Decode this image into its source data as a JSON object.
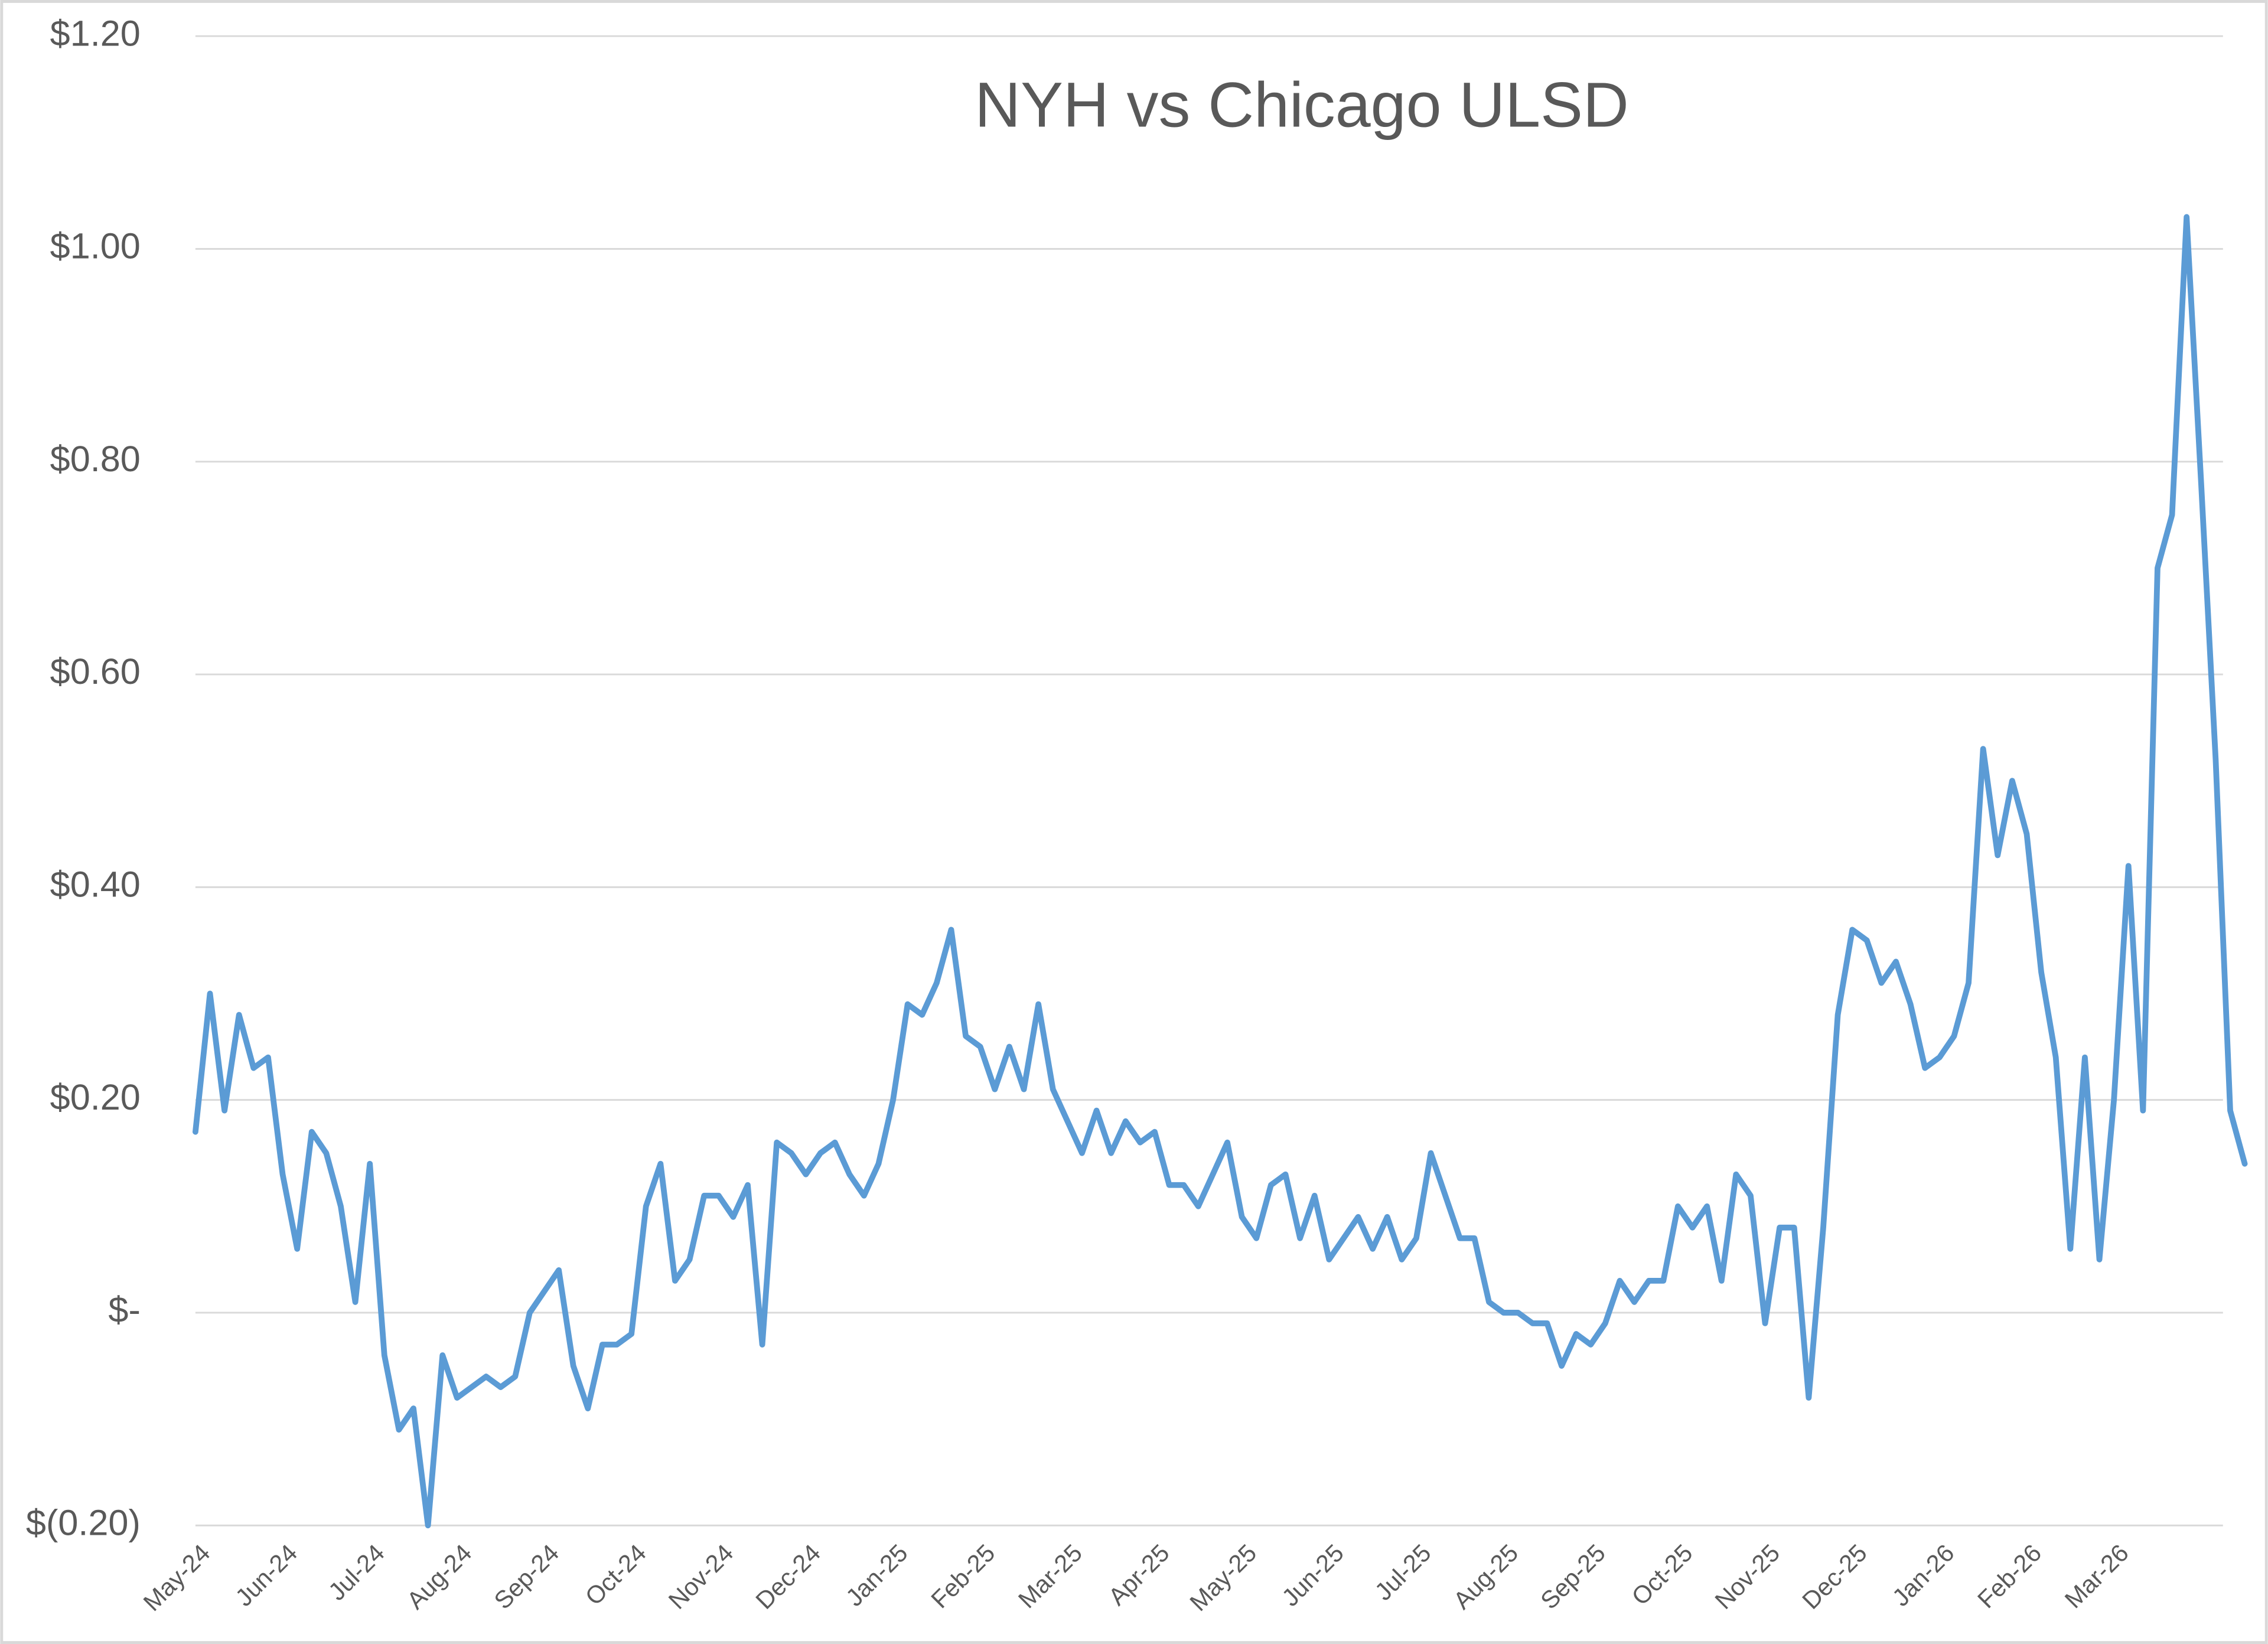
{
  "chart_data": {
    "type": "line",
    "title": "NYH vs Chicago ULSD",
    "color": "#5b9bd5",
    "grid": true,
    "ylim": [
      -0.2,
      1.2
    ],
    "yticks": [
      {
        "value": -0.2,
        "label": "$(0.20)"
      },
      {
        "value": 0,
        "label": "$-"
      },
      {
        "value": 0.2,
        "label": "$0.20"
      },
      {
        "value": 0.4,
        "label": "$0.40"
      },
      {
        "value": 0.6,
        "label": "$0.60"
      },
      {
        "value": 0.8,
        "label": "$0.80"
      },
      {
        "value": 1.0,
        "label": "$1.00"
      },
      {
        "value": 1.2,
        "label": "$1.20"
      }
    ],
    "categories": [
      "May-24",
      null,
      null,
      null,
      null,
      null,
      "Jun-24",
      null,
      null,
      null,
      null,
      null,
      "Jul-24",
      null,
      null,
      null,
      null,
      null,
      "Aug-24",
      null,
      null,
      null,
      null,
      null,
      "Sep-24",
      null,
      null,
      null,
      null,
      null,
      "Oct-24",
      null,
      null,
      null,
      null,
      null,
      "Nov-24",
      null,
      null,
      null,
      null,
      null,
      "Dec-24",
      null,
      null,
      null,
      null,
      null,
      "Jan-25",
      null,
      null,
      null,
      null,
      null,
      "Feb-25",
      null,
      null,
      null,
      null,
      null,
      "Mar-25",
      null,
      null,
      null,
      null,
      null,
      "Apr-25",
      null,
      null,
      null,
      null,
      null,
      "May-25",
      null,
      null,
      null,
      null,
      null,
      "Jun-25",
      null,
      null,
      null,
      null,
      null,
      "Jul-25",
      null,
      null,
      null,
      null,
      null,
      "Aug-25",
      null,
      null,
      null,
      null,
      null,
      "Sep-25",
      null,
      null,
      null,
      null,
      null,
      "Oct-25",
      null,
      null,
      null,
      null,
      null,
      "Nov-25",
      null,
      null,
      null,
      null,
      null,
      "Dec-25",
      null,
      null,
      null,
      null,
      null,
      "Jan-26",
      null,
      null,
      null,
      null,
      null,
      "Feb-26",
      null,
      null,
      null,
      null,
      null,
      "Mar-26",
      null,
      null,
      null,
      null,
      null,
      null,
      null,
      null,
      null
    ],
    "values": [
      0.17,
      0.3,
      0.19,
      0.28,
      0.23,
      0.24,
      0.13,
      0.06,
      0.17,
      0.15,
      0.1,
      0.01,
      0.14,
      -0.04,
      -0.11,
      -0.09,
      -0.2,
      -0.04,
      -0.08,
      -0.07,
      -0.06,
      -0.07,
      -0.06,
      0.0,
      0.02,
      0.04,
      -0.05,
      -0.09,
      -0.03,
      -0.03,
      -0.02,
      0.1,
      0.14,
      0.03,
      0.05,
      0.11,
      0.11,
      0.09,
      0.12,
      -0.03,
      0.16,
      0.15,
      0.13,
      0.15,
      0.16,
      0.13,
      0.11,
      0.14,
      0.2,
      0.29,
      0.28,
      0.31,
      0.36,
      0.26,
      0.25,
      0.21,
      0.25,
      0.21,
      0.29,
      0.21,
      0.18,
      0.15,
      0.19,
      0.15,
      0.18,
      0.16,
      0.17,
      0.12,
      0.12,
      0.1,
      0.13,
      0.16,
      0.09,
      0.07,
      0.12,
      0.13,
      0.07,
      0.11,
      0.05,
      0.07,
      0.09,
      0.06,
      0.09,
      0.05,
      0.07,
      0.15,
      0.11,
      0.07,
      0.07,
      0.01,
      0.0,
      0.0,
      -0.01,
      -0.01,
      -0.05,
      -0.02,
      -0.03,
      -0.01,
      0.03,
      0.01,
      0.03,
      0.03,
      0.1,
      0.08,
      0.1,
      0.03,
      0.13,
      0.11,
      -0.01,
      0.08,
      0.08,
      -0.08,
      0.08,
      0.28,
      0.36,
      0.35,
      0.31,
      0.33,
      0.29,
      0.23,
      0.24,
      0.26,
      0.31,
      0.53,
      0.43,
      0.5,
      0.45,
      0.32,
      0.24,
      0.06,
      0.24,
      0.05,
      0.2,
      0.42,
      0.19,
      0.7,
      0.75,
      1.03,
      0.78,
      0.52,
      0.19,
      0.14
    ]
  }
}
